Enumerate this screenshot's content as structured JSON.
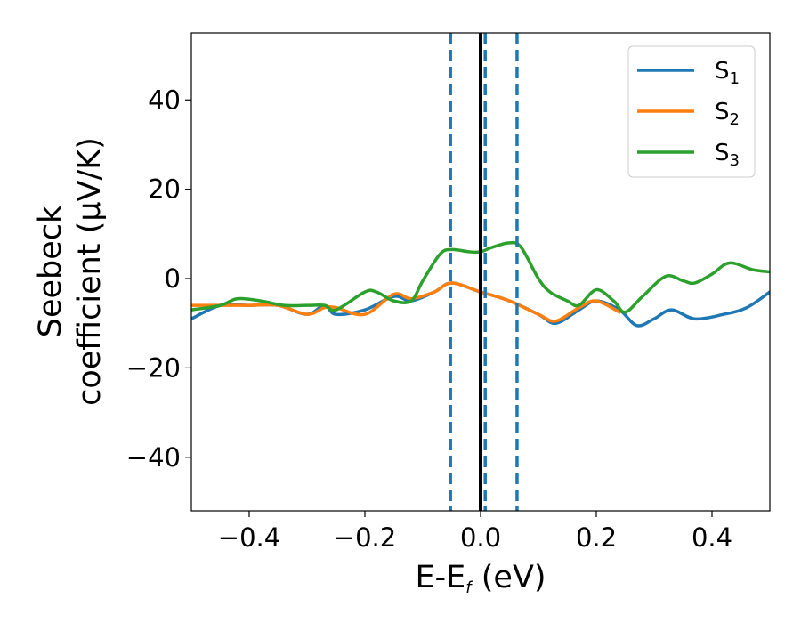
{
  "chart_data": {
    "type": "line",
    "title": "",
    "xlabel_main": "E-E",
    "xlabel_sub": "f",
    "xlabel_tail": " (eV)",
    "ylabel_line1": "Seebeck",
    "ylabel_line2": "coefficient  (μV/K)",
    "xlim": [
      -0.5,
      0.5
    ],
    "ylim": [
      -52,
      55
    ],
    "x_ticks": [
      -0.4,
      -0.2,
      0.0,
      0.2,
      0.4
    ],
    "x_tick_labels": [
      "−0.4",
      "−0.2",
      "0.0",
      "0.2",
      "0.4"
    ],
    "y_ticks": [
      -40,
      -20,
      0,
      20,
      40
    ],
    "y_tick_labels": [
      "−40",
      "−20",
      "0",
      "20",
      "40"
    ],
    "legend_position": "top-right",
    "vlines": [
      {
        "x": -0.052,
        "style": "dashed",
        "color": "#1f77b4"
      },
      {
        "x": 0.008,
        "style": "dashed",
        "color": "#1f77b4"
      },
      {
        "x": 0.063,
        "style": "dashed",
        "color": "#1f77b4"
      },
      {
        "x": 0.0,
        "style": "solid",
        "color": "#000000"
      }
    ],
    "series": [
      {
        "name": "S",
        "sub": "1",
        "color": "#1f77b4",
        "x": [
          -0.5,
          -0.45,
          -0.4,
          -0.35,
          -0.3,
          -0.27,
          -0.25,
          -0.2,
          -0.15,
          -0.12,
          -0.08,
          -0.05,
          0.0,
          0.05,
          0.1,
          0.13,
          0.17,
          0.2,
          0.24,
          0.27,
          0.3,
          0.33,
          0.37,
          0.42,
          0.46,
          0.5
        ],
        "values": [
          -9,
          -6,
          -6,
          -6,
          -8,
          -6,
          -8,
          -7,
          -4,
          -5,
          -3,
          -1,
          -3,
          -5,
          -8,
          -10,
          -7,
          -5,
          -7,
          -10.5,
          -9,
          -7,
          -9,
          -8,
          -6.5,
          -3
        ]
      },
      {
        "name": "S",
        "sub": "2",
        "color": "#ff7f0e",
        "x": [
          -0.5,
          -0.45,
          -0.4,
          -0.35,
          -0.3,
          -0.27,
          -0.25,
          -0.2,
          -0.15,
          -0.12,
          -0.08,
          -0.05,
          0.0,
          0.05,
          0.1,
          0.13,
          0.17,
          0.2,
          0.24
        ],
        "values": [
          -6,
          -6,
          -6,
          -6,
          -8,
          -6.5,
          -6.5,
          -8,
          -3.5,
          -4.5,
          -3,
          -1,
          -3,
          -5,
          -8,
          -9.5,
          -6.5,
          -5,
          -7.5
        ]
      },
      {
        "name": "S",
        "sub": "3",
        "color": "#2ca02c",
        "x": [
          -0.5,
          -0.45,
          -0.42,
          -0.38,
          -0.34,
          -0.3,
          -0.27,
          -0.25,
          -0.2,
          -0.18,
          -0.15,
          -0.12,
          -0.1,
          -0.07,
          -0.05,
          -0.02,
          0.0,
          0.02,
          0.05,
          0.07,
          0.1,
          0.12,
          0.15,
          0.17,
          0.2,
          0.23,
          0.25,
          0.28,
          0.32,
          0.35,
          0.37,
          0.4,
          0.43,
          0.47,
          0.5
        ],
        "values": [
          -7,
          -6,
          -4.5,
          -5,
          -6,
          -6,
          -6,
          -7,
          -3,
          -3,
          -5,
          -5,
          -0.5,
          5.5,
          6.5,
          6,
          6,
          7,
          8,
          7,
          0,
          -3,
          -5,
          -6,
          -2.5,
          -5,
          -7.5,
          -4,
          0.5,
          -0.5,
          -1,
          1,
          3.5,
          2,
          1.5
        ]
      }
    ]
  }
}
